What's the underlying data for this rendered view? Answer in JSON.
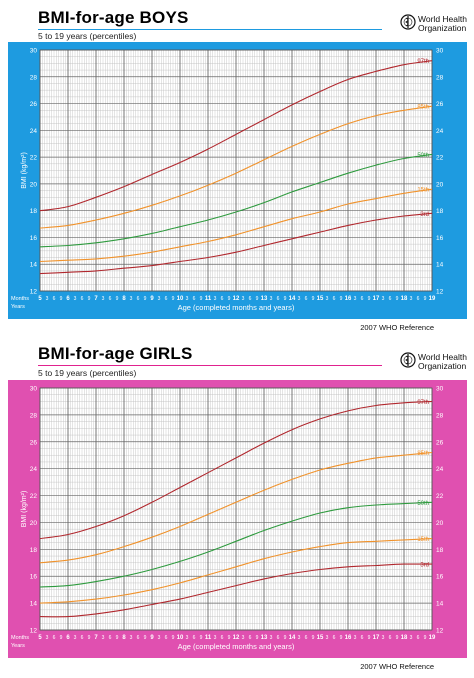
{
  "charts": [
    {
      "key": "boys",
      "title": "BMI-for-age  BOYS",
      "subtitle": "5 to 19 years (percentiles)",
      "org": "World Health\nOrganization",
      "reference": "2007  WHO Reference",
      "colors": {
        "frame": "#1e9be0",
        "title": "#1e9be0",
        "grid_bg": "#ffffff",
        "grid": "#bdbdbd",
        "grid_major": "#666666",
        "p97": "#b0272d",
        "p85": "#f0922b",
        "p50": "#2e9a3e",
        "p15": "#f0922b",
        "p3": "#b0272d"
      },
      "labels": {
        "months": "Months",
        "years": "Years",
        "month_ticks": [
          "3",
          "6",
          "9"
        ]
      }
    },
    {
      "key": "girls",
      "title": "BMI-for-age  GIRLS",
      "subtitle": "5 to 19 years (percentiles)",
      "org": "World Health\nOrganization",
      "reference": "2007 WHO Reference",
      "colors": {
        "frame": "#e050b0",
        "title": "#e0228f",
        "grid_bg": "#ffffff",
        "grid": "#bdbdbd",
        "grid_major": "#666666",
        "p97": "#b0272d",
        "p85": "#f0922b",
        "p50": "#2e9a3e",
        "p15": "#f0922b",
        "p3": "#b0272d"
      },
      "labels": {
        "months": "Months",
        "years": "Years",
        "month_ticks": [
          "3",
          "6",
          "9"
        ]
      }
    }
  ],
  "chart_data": [
    {
      "type": "line",
      "title": "BMI-for-age  BOYS",
      "subtitle": "5 to 19 years (percentiles)",
      "xlabel": "Age (completed months and years)",
      "ylabel": "BMI (kg/m²)",
      "xlim": [
        5,
        19
      ],
      "ylim": [
        12,
        30
      ],
      "x_ticks": [
        5,
        6,
        7,
        8,
        9,
        10,
        11,
        12,
        13,
        14,
        15,
        16,
        17,
        18,
        19
      ],
      "y_ticks": [
        12,
        14,
        16,
        18,
        20,
        22,
        24,
        26,
        28,
        30
      ],
      "grid": true,
      "x": [
        5,
        6,
        7,
        8,
        9,
        10,
        11,
        12,
        13,
        14,
        15,
        16,
        17,
        18,
        19
      ],
      "series": [
        {
          "name": "97th",
          "values": [
            18.0,
            18.3,
            19.0,
            19.8,
            20.7,
            21.6,
            22.6,
            23.7,
            24.8,
            25.9,
            26.9,
            27.8,
            28.4,
            28.9,
            29.2
          ]
        },
        {
          "name": "85th",
          "values": [
            16.7,
            16.9,
            17.3,
            17.8,
            18.4,
            19.1,
            19.9,
            20.8,
            21.8,
            22.8,
            23.7,
            24.5,
            25.1,
            25.5,
            25.8
          ]
        },
        {
          "name": "50th",
          "values": [
            15.3,
            15.4,
            15.6,
            15.9,
            16.3,
            16.8,
            17.3,
            17.9,
            18.6,
            19.4,
            20.1,
            20.8,
            21.4,
            21.9,
            22.2
          ]
        },
        {
          "name": "15th",
          "values": [
            14.2,
            14.3,
            14.4,
            14.6,
            14.9,
            15.3,
            15.7,
            16.2,
            16.8,
            17.4,
            17.9,
            18.5,
            18.9,
            19.3,
            19.6
          ]
        },
        {
          "name": "3rd",
          "values": [
            13.3,
            13.4,
            13.5,
            13.7,
            13.9,
            14.2,
            14.5,
            14.9,
            15.4,
            15.9,
            16.4,
            16.9,
            17.3,
            17.6,
            17.8
          ]
        }
      ]
    },
    {
      "type": "line",
      "title": "BMI-for-age  GIRLS",
      "subtitle": "5 to 19 years (percentiles)",
      "xlabel": "Age (completed months and years)",
      "ylabel": "BMI (kg/m²)",
      "xlim": [
        5,
        19
      ],
      "ylim": [
        12,
        30
      ],
      "x_ticks": [
        5,
        6,
        7,
        8,
        9,
        10,
        11,
        12,
        13,
        14,
        15,
        16,
        17,
        18,
        19
      ],
      "y_ticks": [
        12,
        14,
        16,
        18,
        20,
        22,
        24,
        26,
        28,
        30
      ],
      "grid": true,
      "x": [
        5,
        6,
        7,
        8,
        9,
        10,
        11,
        12,
        13,
        14,
        15,
        16,
        17,
        18,
        19
      ],
      "series": [
        {
          "name": "97th",
          "values": [
            18.8,
            19.1,
            19.7,
            20.5,
            21.5,
            22.6,
            23.7,
            24.8,
            25.9,
            26.9,
            27.7,
            28.3,
            28.7,
            28.9,
            29.0
          ]
        },
        {
          "name": "85th",
          "values": [
            17.0,
            17.2,
            17.6,
            18.2,
            18.9,
            19.7,
            20.6,
            21.5,
            22.4,
            23.2,
            23.9,
            24.4,
            24.8,
            25.0,
            25.2
          ]
        },
        {
          "name": "50th",
          "values": [
            15.2,
            15.3,
            15.6,
            16.0,
            16.5,
            17.1,
            17.8,
            18.6,
            19.4,
            20.1,
            20.7,
            21.1,
            21.3,
            21.4,
            21.5
          ]
        },
        {
          "name": "15th",
          "values": [
            14.0,
            14.1,
            14.3,
            14.6,
            15.0,
            15.5,
            16.1,
            16.7,
            17.3,
            17.8,
            18.2,
            18.5,
            18.6,
            18.7,
            18.8
          ]
        },
        {
          "name": "3rd",
          "values": [
            13.0,
            13.0,
            13.2,
            13.5,
            13.9,
            14.3,
            14.8,
            15.3,
            15.8,
            16.2,
            16.5,
            16.7,
            16.8,
            16.9,
            16.9
          ]
        }
      ]
    }
  ]
}
